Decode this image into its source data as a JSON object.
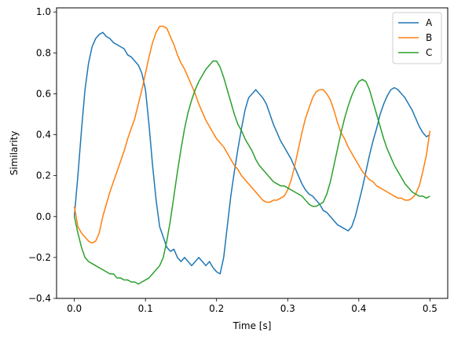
{
  "chart_data": {
    "type": "line",
    "xlabel": "Time [s]",
    "ylabel": "Similarity",
    "xlim": [
      -0.025,
      0.525
    ],
    "ylim": [
      -0.4,
      1.02
    ],
    "xticks": [
      0.0,
      0.1,
      0.2,
      0.3,
      0.4,
      0.5
    ],
    "xtick_labels": [
      "0.0",
      "0.1",
      "0.2",
      "0.3",
      "0.4",
      "0.5"
    ],
    "yticks": [
      -0.4,
      -0.2,
      0.0,
      0.2,
      0.4,
      0.6,
      0.8,
      1.0
    ],
    "ytick_labels": [
      "−0.4",
      "−0.2",
      "0.0",
      "0.2",
      "0.4",
      "0.6",
      "0.8",
      "1.0"
    ],
    "grid": false,
    "legend": {
      "position": "top-right"
    },
    "series": [
      {
        "name": "A",
        "color": "#1f77b4",
        "x": [
          0.0,
          0.005,
          0.01,
          0.015,
          0.02,
          0.025,
          0.03,
          0.035,
          0.04,
          0.045,
          0.05,
          0.055,
          0.06,
          0.065,
          0.07,
          0.075,
          0.08,
          0.085,
          0.09,
          0.095,
          0.1,
          0.105,
          0.11,
          0.115,
          0.12,
          0.125,
          0.13,
          0.135,
          0.14,
          0.145,
          0.15,
          0.155,
          0.16,
          0.165,
          0.17,
          0.175,
          0.18,
          0.185,
          0.19,
          0.195,
          0.2,
          0.205,
          0.21,
          0.215,
          0.22,
          0.225,
          0.23,
          0.235,
          0.24,
          0.245,
          0.25,
          0.255,
          0.26,
          0.265,
          0.27,
          0.275,
          0.28,
          0.285,
          0.29,
          0.295,
          0.3,
          0.305,
          0.31,
          0.315,
          0.32,
          0.325,
          0.33,
          0.335,
          0.34,
          0.345,
          0.35,
          0.355,
          0.36,
          0.365,
          0.37,
          0.375,
          0.38,
          0.385,
          0.39,
          0.395,
          0.4,
          0.405,
          0.41,
          0.415,
          0.42,
          0.425,
          0.43,
          0.435,
          0.44,
          0.445,
          0.45,
          0.455,
          0.46,
          0.465,
          0.47,
          0.475,
          0.48,
          0.485,
          0.49,
          0.495,
          0.5
        ],
        "y": [
          0.0,
          0.2,
          0.42,
          0.62,
          0.75,
          0.83,
          0.87,
          0.89,
          0.9,
          0.88,
          0.87,
          0.85,
          0.84,
          0.83,
          0.82,
          0.79,
          0.78,
          0.76,
          0.74,
          0.7,
          0.62,
          0.45,
          0.25,
          0.08,
          -0.05,
          -0.1,
          -0.15,
          -0.17,
          -0.16,
          -0.2,
          -0.22,
          -0.2,
          -0.22,
          -0.24,
          -0.22,
          -0.2,
          -0.22,
          -0.24,
          -0.22,
          -0.25,
          -0.27,
          -0.28,
          -0.2,
          -0.05,
          0.1,
          0.22,
          0.33,
          0.43,
          0.52,
          0.58,
          0.6,
          0.62,
          0.6,
          0.58,
          0.55,
          0.5,
          0.45,
          0.41,
          0.37,
          0.34,
          0.31,
          0.28,
          0.24,
          0.2,
          0.16,
          0.13,
          0.11,
          0.1,
          0.08,
          0.06,
          0.03,
          0.02,
          0.0,
          -0.02,
          -0.04,
          -0.05,
          -0.06,
          -0.07,
          -0.05,
          0.0,
          0.07,
          0.14,
          0.22,
          0.3,
          0.37,
          0.43,
          0.5,
          0.55,
          0.59,
          0.62,
          0.63,
          0.62,
          0.6,
          0.58,
          0.55,
          0.52,
          0.48,
          0.44,
          0.41,
          0.39,
          0.4
        ]
      },
      {
        "name": "B",
        "color": "#ff7f0e",
        "x": [
          0.0,
          0.005,
          0.01,
          0.015,
          0.02,
          0.025,
          0.03,
          0.035,
          0.04,
          0.045,
          0.05,
          0.055,
          0.06,
          0.065,
          0.07,
          0.075,
          0.08,
          0.085,
          0.09,
          0.095,
          0.1,
          0.105,
          0.11,
          0.115,
          0.12,
          0.125,
          0.13,
          0.135,
          0.14,
          0.145,
          0.15,
          0.155,
          0.16,
          0.165,
          0.17,
          0.175,
          0.18,
          0.185,
          0.19,
          0.195,
          0.2,
          0.205,
          0.21,
          0.215,
          0.22,
          0.225,
          0.23,
          0.235,
          0.24,
          0.245,
          0.25,
          0.255,
          0.26,
          0.265,
          0.27,
          0.275,
          0.28,
          0.285,
          0.29,
          0.295,
          0.3,
          0.305,
          0.31,
          0.315,
          0.32,
          0.325,
          0.33,
          0.335,
          0.34,
          0.345,
          0.35,
          0.355,
          0.36,
          0.365,
          0.37,
          0.375,
          0.38,
          0.385,
          0.39,
          0.395,
          0.4,
          0.405,
          0.41,
          0.415,
          0.42,
          0.425,
          0.43,
          0.435,
          0.44,
          0.445,
          0.45,
          0.455,
          0.46,
          0.465,
          0.47,
          0.475,
          0.48,
          0.485,
          0.49,
          0.495,
          0.5
        ],
        "y": [
          0.05,
          -0.05,
          -0.08,
          -0.1,
          -0.12,
          -0.13,
          -0.12,
          -0.08,
          0.0,
          0.06,
          0.12,
          0.17,
          0.22,
          0.27,
          0.32,
          0.38,
          0.43,
          0.48,
          0.55,
          0.62,
          0.7,
          0.78,
          0.85,
          0.9,
          0.93,
          0.93,
          0.92,
          0.88,
          0.84,
          0.79,
          0.75,
          0.72,
          0.68,
          0.64,
          0.6,
          0.55,
          0.51,
          0.47,
          0.44,
          0.41,
          0.38,
          0.36,
          0.34,
          0.31,
          0.28,
          0.25,
          0.23,
          0.2,
          0.18,
          0.16,
          0.14,
          0.12,
          0.1,
          0.08,
          0.07,
          0.07,
          0.08,
          0.08,
          0.09,
          0.1,
          0.13,
          0.18,
          0.25,
          0.33,
          0.41,
          0.48,
          0.53,
          0.58,
          0.61,
          0.62,
          0.62,
          0.6,
          0.57,
          0.52,
          0.46,
          0.41,
          0.38,
          0.34,
          0.31,
          0.28,
          0.25,
          0.22,
          0.2,
          0.18,
          0.17,
          0.15,
          0.14,
          0.13,
          0.12,
          0.11,
          0.1,
          0.09,
          0.09,
          0.08,
          0.08,
          0.09,
          0.11,
          0.15,
          0.22,
          0.3,
          0.42
        ]
      },
      {
        "name": "C",
        "color": "#2ca02c",
        "x": [
          0.0,
          0.005,
          0.01,
          0.015,
          0.02,
          0.025,
          0.03,
          0.035,
          0.04,
          0.045,
          0.05,
          0.055,
          0.06,
          0.065,
          0.07,
          0.075,
          0.08,
          0.085,
          0.09,
          0.095,
          0.1,
          0.105,
          0.11,
          0.115,
          0.12,
          0.125,
          0.13,
          0.135,
          0.14,
          0.145,
          0.15,
          0.155,
          0.16,
          0.165,
          0.17,
          0.175,
          0.18,
          0.185,
          0.19,
          0.195,
          0.2,
          0.205,
          0.21,
          0.215,
          0.22,
          0.225,
          0.23,
          0.235,
          0.24,
          0.245,
          0.25,
          0.255,
          0.26,
          0.265,
          0.27,
          0.275,
          0.28,
          0.285,
          0.29,
          0.295,
          0.3,
          0.305,
          0.31,
          0.315,
          0.32,
          0.325,
          0.33,
          0.335,
          0.34,
          0.345,
          0.35,
          0.355,
          0.36,
          0.365,
          0.37,
          0.375,
          0.38,
          0.385,
          0.39,
          0.395,
          0.4,
          0.405,
          0.41,
          0.415,
          0.42,
          0.425,
          0.43,
          0.435,
          0.44,
          0.445,
          0.45,
          0.455,
          0.46,
          0.465,
          0.47,
          0.475,
          0.48,
          0.485,
          0.49,
          0.495,
          0.5
        ],
        "y": [
          0.0,
          -0.08,
          -0.15,
          -0.2,
          -0.22,
          -0.23,
          -0.24,
          -0.25,
          -0.26,
          -0.27,
          -0.28,
          -0.28,
          -0.3,
          -0.3,
          -0.31,
          -0.31,
          -0.32,
          -0.32,
          -0.33,
          -0.32,
          -0.31,
          -0.3,
          -0.28,
          -0.26,
          -0.24,
          -0.2,
          -0.12,
          -0.02,
          0.1,
          0.22,
          0.33,
          0.43,
          0.51,
          0.57,
          0.62,
          0.66,
          0.69,
          0.72,
          0.74,
          0.76,
          0.76,
          0.73,
          0.68,
          0.62,
          0.56,
          0.5,
          0.45,
          0.42,
          0.38,
          0.35,
          0.32,
          0.28,
          0.25,
          0.23,
          0.21,
          0.19,
          0.17,
          0.16,
          0.15,
          0.15,
          0.14,
          0.13,
          0.12,
          0.11,
          0.1,
          0.08,
          0.06,
          0.05,
          0.05,
          0.06,
          0.07,
          0.11,
          0.17,
          0.25,
          0.33,
          0.41,
          0.48,
          0.54,
          0.59,
          0.63,
          0.66,
          0.67,
          0.66,
          0.62,
          0.56,
          0.5,
          0.44,
          0.38,
          0.33,
          0.29,
          0.25,
          0.22,
          0.19,
          0.16,
          0.14,
          0.12,
          0.11,
          0.1,
          0.1,
          0.09,
          0.1
        ]
      }
    ]
  }
}
